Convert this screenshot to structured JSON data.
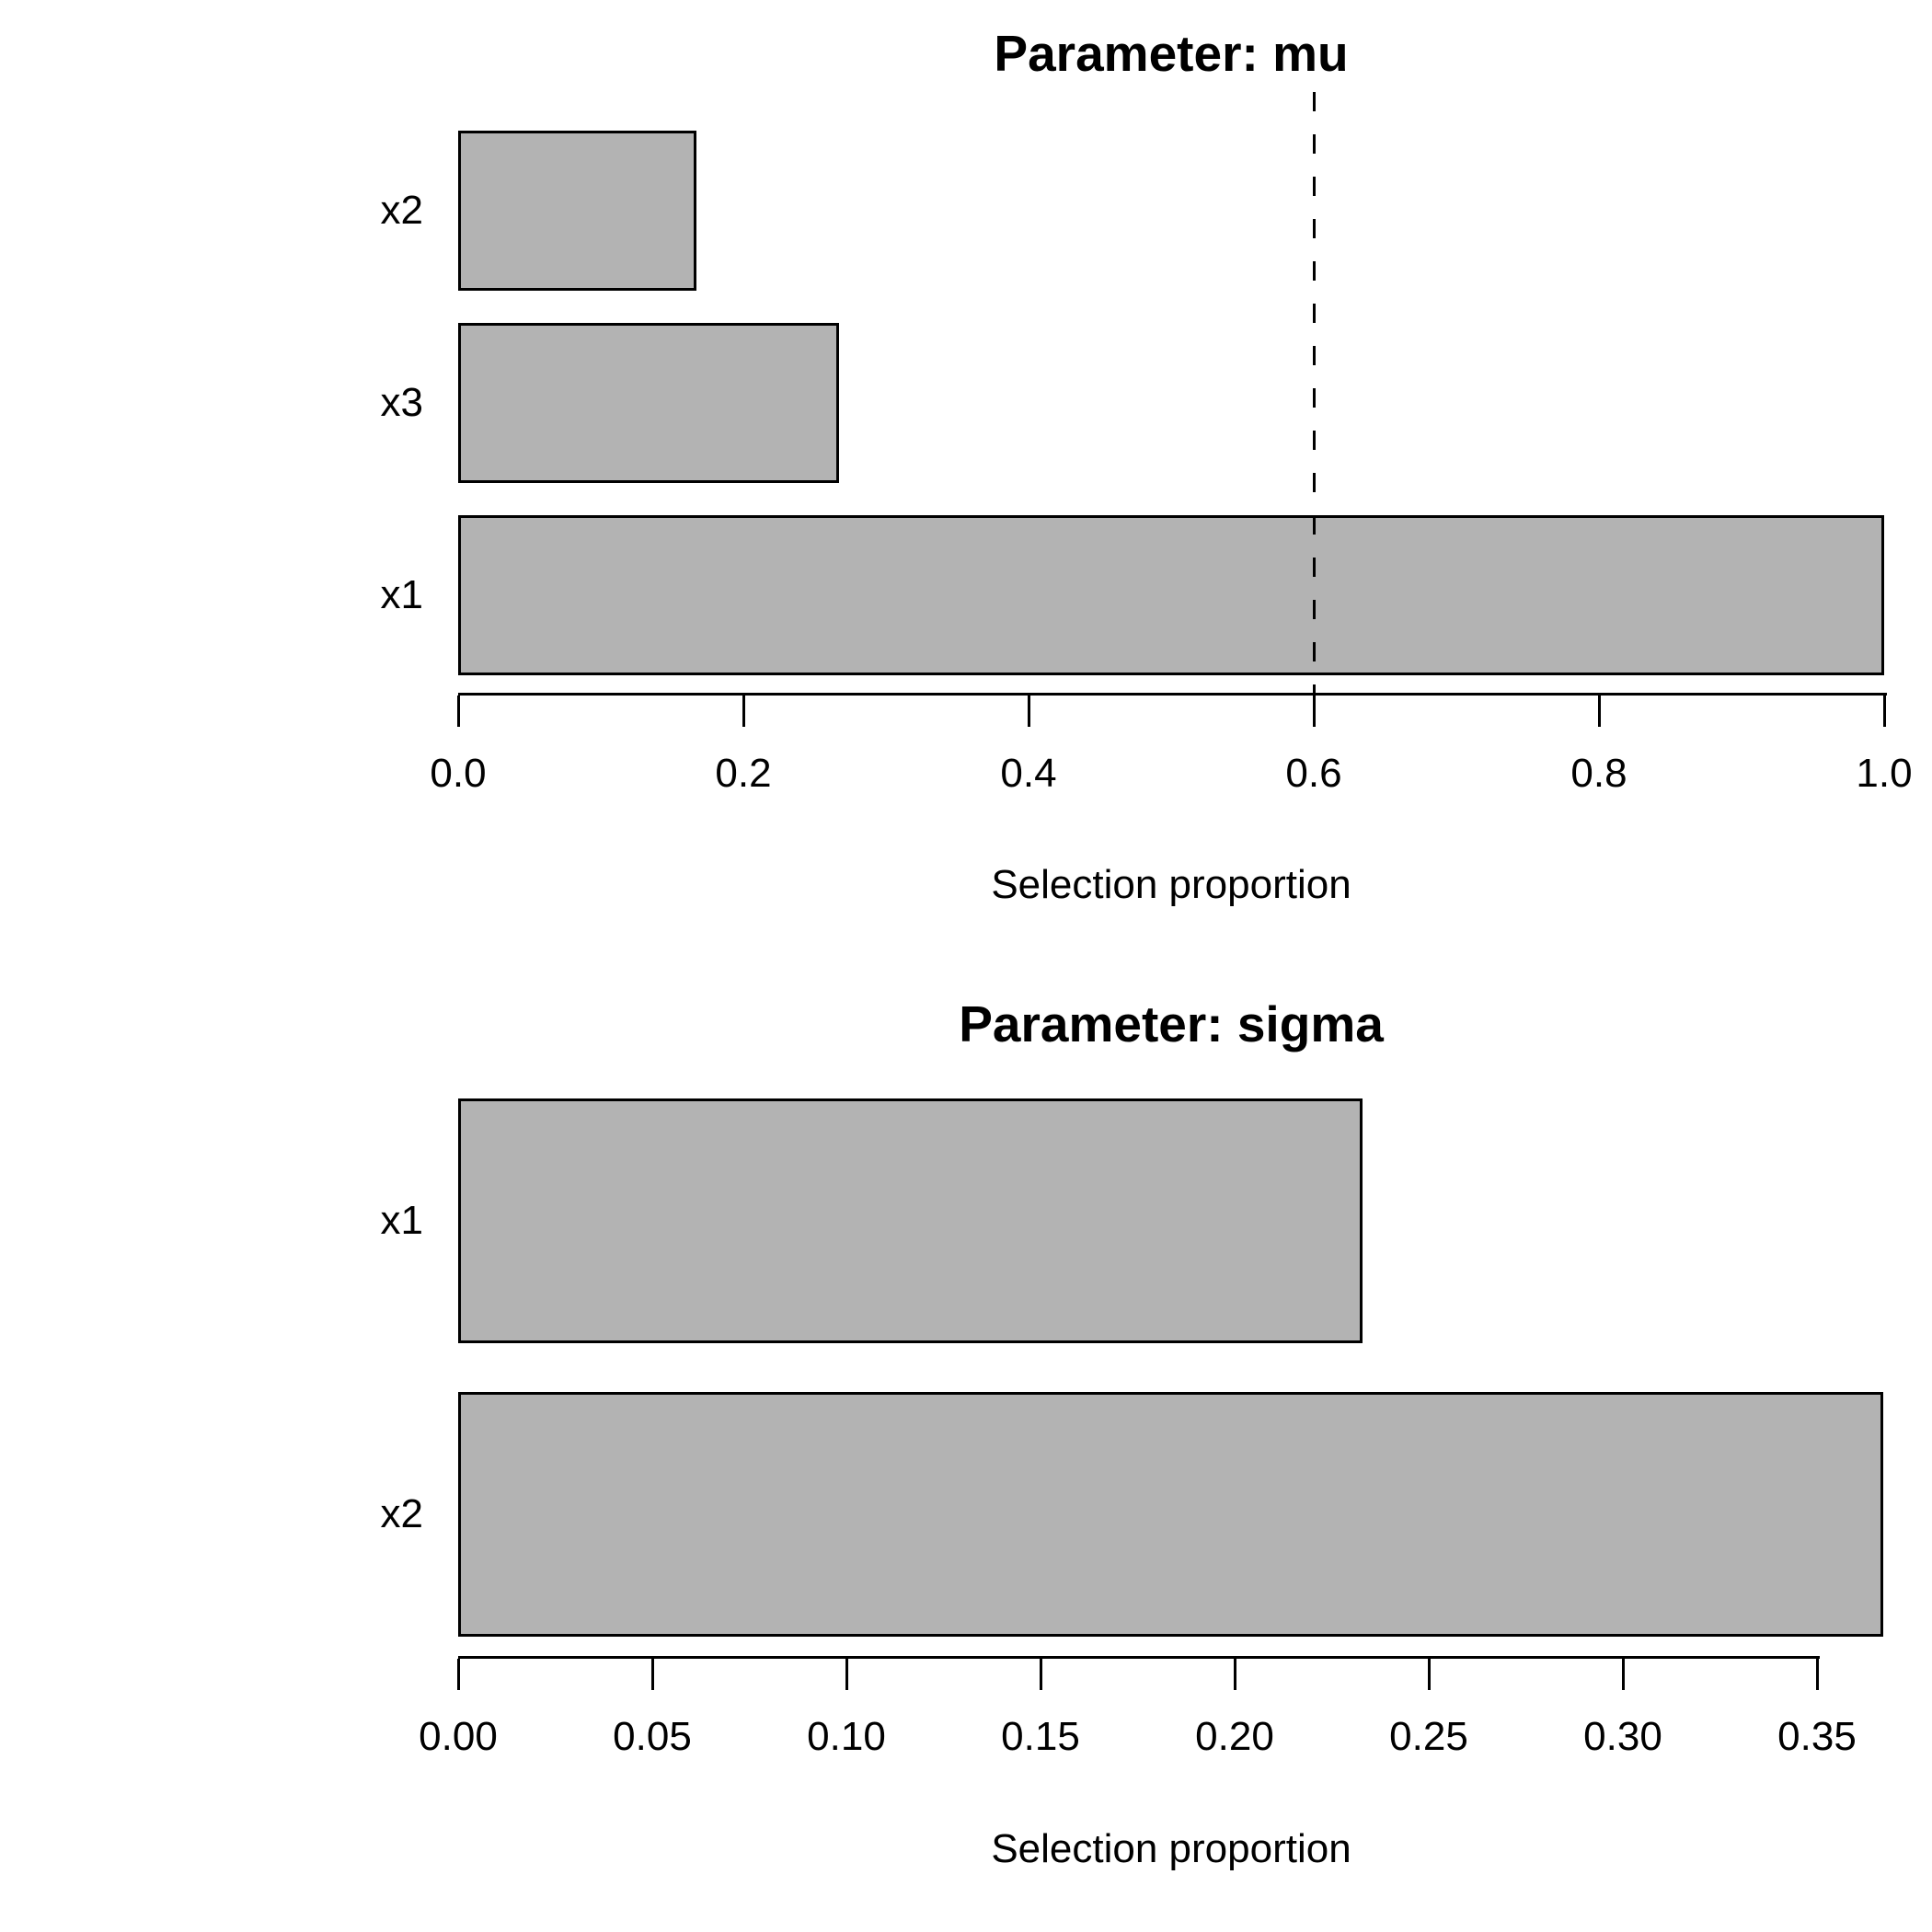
{
  "figure": {
    "background": "#ffffff",
    "bar_fill_color": "#b3b3b3",
    "bar_border_color": "#000000",
    "axis_color": "#000000",
    "text_color": "#000000"
  },
  "chart_data": [
    {
      "type": "bar",
      "orientation": "horizontal",
      "title": "Parameter: mu",
      "xlabel": "Selection proportion",
      "categories": [
        "x2",
        "x3",
        "x1"
      ],
      "values": [
        0.167,
        0.267,
        1.0
      ],
      "xlim": [
        0.0,
        1.0
      ],
      "tick_values": [
        0.0,
        0.2,
        0.4,
        0.6,
        0.8,
        1.0
      ],
      "tick_labels": [
        "0.0",
        "0.2",
        "0.4",
        "0.6",
        "0.8",
        "1.0"
      ],
      "threshold_vline": {
        "value": 0.6,
        "style": "dashed",
        "color": "#000000"
      },
      "grid": false,
      "legend": false
    },
    {
      "type": "bar",
      "orientation": "horizontal",
      "title": "Parameter: sigma",
      "xlabel": "Selection proportion",
      "categories": [
        "x1",
        "x2"
      ],
      "values": [
        0.233,
        0.367
      ],
      "xlim": [
        0.0,
        0.367
      ],
      "tick_values": [
        0.0,
        0.05,
        0.1,
        0.15,
        0.2,
        0.25,
        0.3,
        0.35
      ],
      "tick_labels": [
        "0.00",
        "0.05",
        "0.10",
        "0.15",
        "0.20",
        "0.25",
        "0.30",
        "0.35"
      ],
      "threshold_vline": null,
      "grid": false,
      "legend": false
    }
  ]
}
